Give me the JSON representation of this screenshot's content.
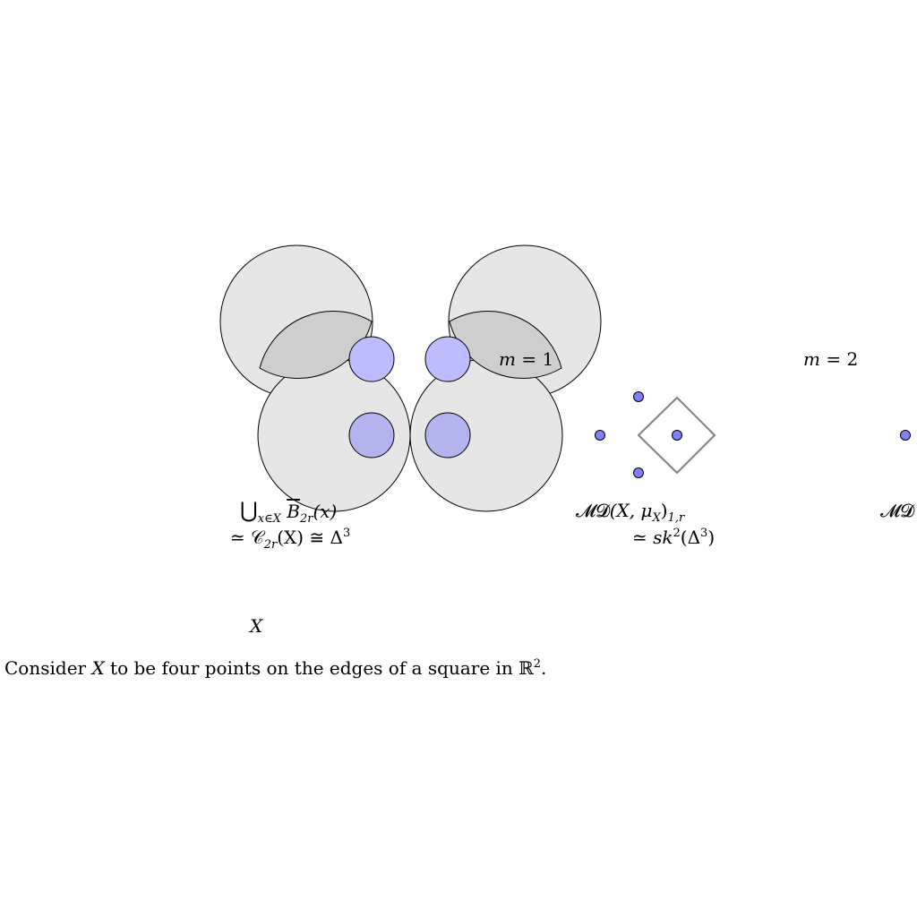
{
  "labels": {
    "m1": {
      "var": "m",
      "eq": " = ",
      "val": "1"
    },
    "m2": {
      "var": "m",
      "eq": " = ",
      "val": "2"
    },
    "union": {
      "cup": "⋃",
      "cup_sub": "x∈X",
      "ball": "B",
      "ball_sub": "2r",
      "arg": "(x)"
    },
    "cech": {
      "simeq": "≃ ",
      "C": "𝒞",
      "C_sub": "2r",
      "arg": "(X) ≅ Δ",
      "arg_sup": "3"
    },
    "md1": {
      "MD": "𝓜𝓓",
      "arg": "(X, μ",
      "arg_sub": "X",
      "close": ")",
      "close_sub": "1,r"
    },
    "sk": {
      "simeq": "≃ ",
      "sk": "sk",
      "sk_sup": "2",
      "arg": "(Δ",
      "arg_sup": "3",
      "close": ")"
    },
    "md2": {
      "MD": "𝓜𝓓"
    },
    "X": "X",
    "caption": {
      "pre": "Consider ",
      "X": "X",
      "mid": " to be four points on the edges of a square in ℝ",
      "sup": "2",
      "post": "."
    }
  },
  "colors": {
    "big_ball_fill": "#e6e6e6",
    "small_ball_fill": "#b3b3f4",
    "point_fill": "#8080ff",
    "square_stroke": "#808080",
    "stroke": "#000000"
  }
}
